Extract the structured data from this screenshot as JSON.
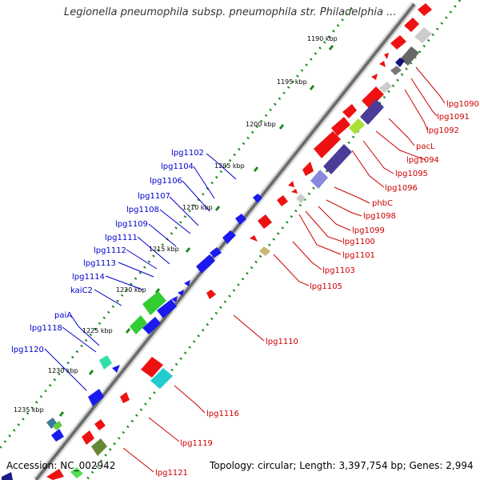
{
  "title": "Legionella pneumophila subsp. pneumophila str. Philadelphia ...",
  "footer": {
    "accession": "Accession: NC_002942",
    "topology": "Topology: circular; Length: 3,397,754 bp; Genes: 2,994"
  },
  "scale_ticks": [
    "1190 kbp",
    "1195 kbp",
    "1200 kbp",
    "1205 kbp",
    "1210 kbp",
    "1215 kbp",
    "1220 kbp",
    "1225 kbp",
    "1230 kbp",
    "1235 kbp"
  ],
  "genes_left": [
    "lpg1102",
    "lpg1104",
    "lpg1106",
    "lpg1107",
    "lpg1108",
    "lpg1109",
    "lpg1111",
    "lpg1112",
    "lpg1113",
    "lpg1114",
    "kaiC2",
    "paiA",
    "lpg1118",
    "lpg1120"
  ],
  "genes_right": [
    "lpg1090",
    "lpg1091",
    "lpg1092",
    "pacL",
    "lpg1094",
    "lpg1095",
    "lpg1096",
    "phbC",
    "lpg1098",
    "lpg1099",
    "lpg1100",
    "lpg1101",
    "lpg1103",
    "lpg1105",
    "lpg1110",
    "lpg1116",
    "lpg1119",
    "lpg1121"
  ],
  "colors": {
    "forward_strand": "#0000ee",
    "reverse_strand": "#ee0000",
    "backbone": "#808080",
    "gc_dots": "#228b22",
    "left_label": "#0000cc",
    "right_label": "#cc0000"
  }
}
